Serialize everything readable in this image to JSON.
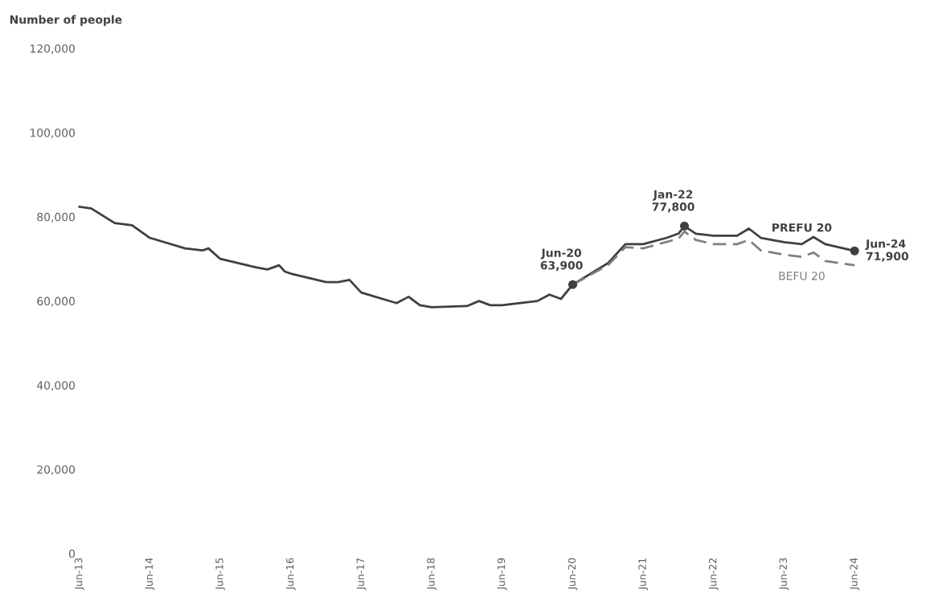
{
  "chart_data": {
    "type": "line",
    "ylabel": "Number of people",
    "series": [
      {
        "name": "PREFU 20",
        "color": "#404040",
        "line_style": "solid",
        "x": [
          "2013-06",
          "2013-08",
          "2013-12",
          "2014-03",
          "2014-06",
          "2014-12",
          "2015-03",
          "2015-04",
          "2015-06",
          "2015-12",
          "2016-02",
          "2016-04",
          "2016-05",
          "2016-06",
          "2016-12",
          "2017-02",
          "2017-04",
          "2017-06",
          "2017-12",
          "2018-02",
          "2018-04",
          "2018-06",
          "2018-12",
          "2019-02",
          "2019-04",
          "2019-06",
          "2019-12",
          "2020-02",
          "2020-04",
          "2020-06",
          "2020-12",
          "2021-03",
          "2021-06",
          "2021-10",
          "2021-12",
          "2022-01",
          "2022-03",
          "2022-06",
          "2022-10",
          "2022-12",
          "2023-02",
          "2023-06",
          "2023-09",
          "2023-11",
          "2024-01",
          "2024-06"
        ],
        "values": [
          82400,
          82000,
          78500,
          78000,
          75000,
          72500,
          72000,
          72500,
          70000,
          68000,
          67500,
          68500,
          67000,
          66500,
          64500,
          64500,
          65000,
          62000,
          59500,
          61000,
          59000,
          58500,
          58800,
          60000,
          59000,
          59000,
          60000,
          61500,
          60500,
          63900,
          69000,
          73500,
          73500,
          75000,
          76000,
          77800,
          76000,
          75500,
          75500,
          77200,
          75000,
          74000,
          73500,
          75200,
          73500,
          71900
        ]
      },
      {
        "name": "BEFU 20",
        "color": "#808080",
        "line_style": "dashed",
        "x": [
          "2020-06",
          "2020-12",
          "2021-03",
          "2021-06",
          "2021-12",
          "2022-01",
          "2022-03",
          "2022-06",
          "2022-10",
          "2022-12",
          "2023-02",
          "2023-06",
          "2023-09",
          "2023-11",
          "2024-01",
          "2024-06"
        ],
        "values": [
          63900,
          68500,
          72800,
          72500,
          74800,
          76500,
          74500,
          73500,
          73500,
          74500,
          72000,
          71000,
          70500,
          71500,
          69500,
          68500
        ]
      }
    ],
    "annotations": [
      {
        "text": "Jun-20\n63,900",
        "x": "2020-06",
        "y": 63900
      },
      {
        "text": "Jan-22\n77,800",
        "x": "2022-01",
        "y": 77800
      },
      {
        "text": "Jun-24\n71,900",
        "x": "2024-06",
        "y": 71900
      }
    ],
    "xlim": [
      "2013-06",
      "2024-06"
    ],
    "xticks": [
      {
        "value": "2013-06",
        "label": "Jun-13"
      },
      {
        "value": "2014-06",
        "label": "Jun-14"
      },
      {
        "value": "2015-06",
        "label": "Jun-15"
      },
      {
        "value": "2016-06",
        "label": "Jun-16"
      },
      {
        "value": "2017-06",
        "label": "Jun-17"
      },
      {
        "value": "2018-06",
        "label": "Jun-18"
      },
      {
        "value": "2019-06",
        "label": "Jun-19"
      },
      {
        "value": "2020-06",
        "label": "Jun-20"
      },
      {
        "value": "2021-06",
        "label": "Jun-21"
      },
      {
        "value": "2022-06",
        "label": "Jun-22"
      },
      {
        "value": "2023-06",
        "label": "Jun-23"
      },
      {
        "value": "2024-06",
        "label": "Jun-24"
      }
    ],
    "ylim": [
      0,
      120000
    ],
    "yticks": [
      {
        "value": 0,
        "label": "0"
      },
      {
        "value": 20000,
        "label": "20,000"
      },
      {
        "value": 40000,
        "label": "40,000"
      },
      {
        "value": 60000,
        "label": "60,000"
      },
      {
        "value": 80000,
        "label": "80,000"
      },
      {
        "value": 100000,
        "label": "100,000"
      },
      {
        "value": 120000,
        "label": "120,000"
      }
    ],
    "grid": false,
    "legend": false
  }
}
